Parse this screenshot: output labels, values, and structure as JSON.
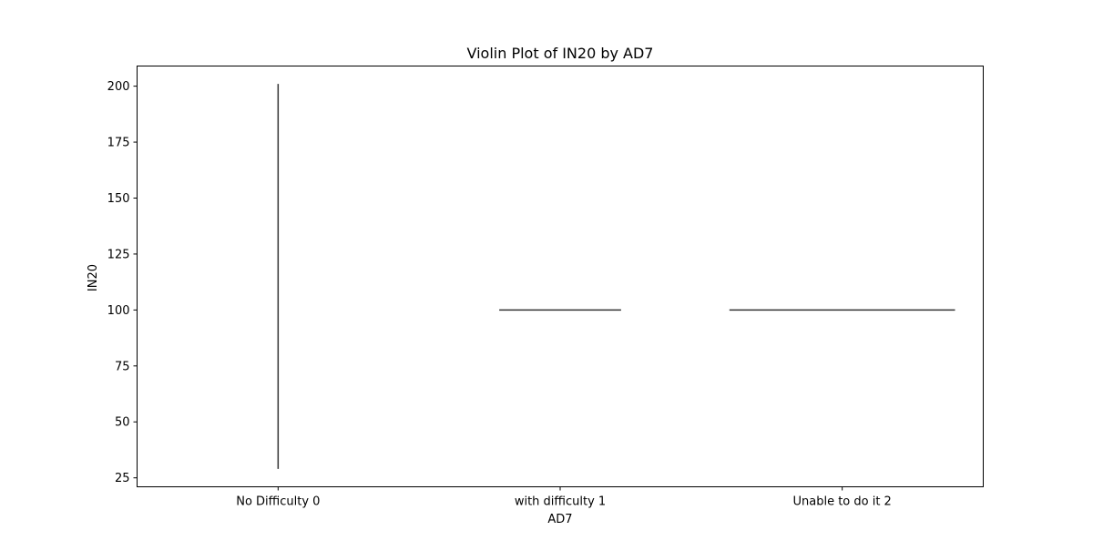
{
  "chart_data": {
    "type": "violin",
    "title": "Violin Plot of IN20 by AD7",
    "xlabel": "AD7",
    "ylabel": "IN20",
    "categories": [
      "No Difficulty 0",
      "with difficulty 1",
      "Unable to do it 2"
    ],
    "ylim": [
      21,
      209
    ],
    "yticks": [
      25,
      50,
      75,
      100,
      125,
      150,
      175,
      200
    ],
    "ytick_labels": [
      "25",
      "50",
      "75",
      "100",
      "125",
      "150",
      "175",
      "200"
    ],
    "series": [
      {
        "category": "No Difficulty 0",
        "shape": "vertical-line",
        "y_min": 29,
        "y_max": 201
      },
      {
        "category": "with difficulty 1",
        "shape": "horizontal-line",
        "y": 100,
        "relative_width": 0.54
      },
      {
        "category": "Unable to do it 2",
        "shape": "horizontal-line",
        "y": 100,
        "relative_width": 1.0
      }
    ],
    "grid": false,
    "legend": "none",
    "colors": {
      "line": "#333333",
      "axes": "#000000",
      "background": "#ffffff"
    }
  }
}
